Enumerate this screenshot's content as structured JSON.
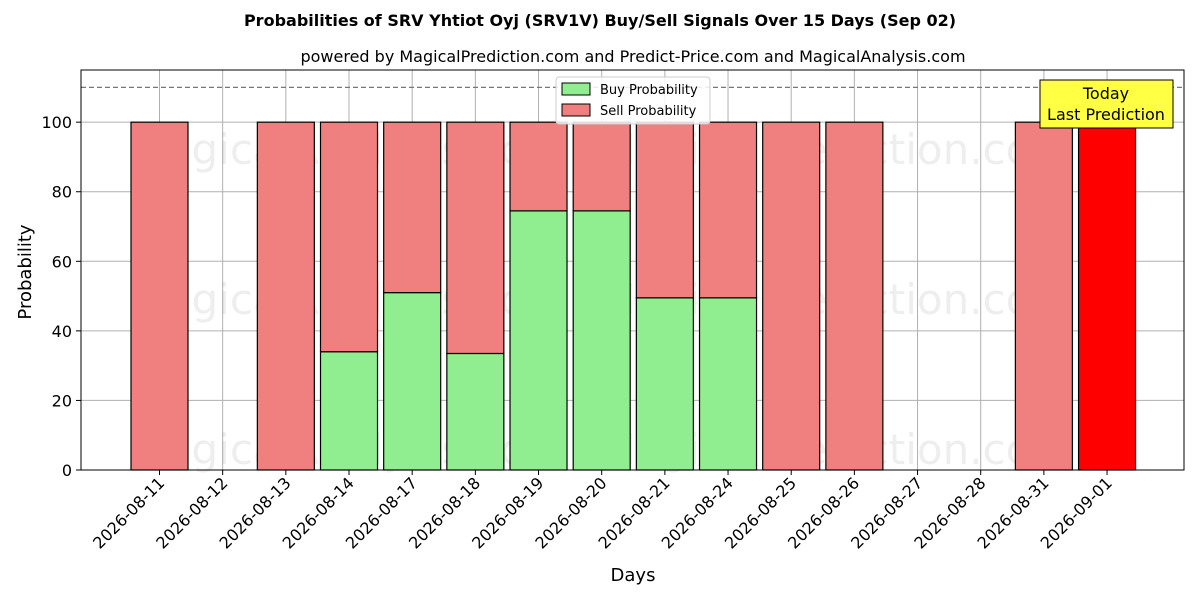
{
  "chart_data": {
    "type": "bar",
    "title": "Probabilities of SRV Yhtiot Oyj (SRV1V) Buy/Sell Signals Over 15 Days (Sep 02)",
    "subtitle": "powered by MagicalPrediction.com and Predict-Price.com and MagicalAnalysis.com",
    "xlabel": "Days",
    "ylabel": "Probability",
    "ylim": [
      0,
      115
    ],
    "yticks": [
      0,
      20,
      40,
      60,
      80,
      100
    ],
    "reference_line": 110,
    "grid": true,
    "legend_position": "upper-center",
    "categories": [
      "2026-08-11",
      "2026-08-12",
      "2026-08-13",
      "2026-08-14",
      "2026-08-17",
      "2026-08-18",
      "2026-08-19",
      "2026-08-20",
      "2026-08-21",
      "2026-08-24",
      "2026-08-25",
      "2026-08-26",
      "2026-08-27",
      "2026-08-28",
      "2026-08-31",
      "2026-09-01"
    ],
    "series": [
      {
        "name": "Buy Probability",
        "color": "#90ee90",
        "values": [
          0,
          null,
          0,
          34,
          51,
          33.5,
          74.5,
          74.5,
          49.5,
          49.5,
          0,
          0,
          null,
          null,
          0,
          0
        ]
      },
      {
        "name": "Sell Probability",
        "color": "#f08080",
        "values": [
          100,
          null,
          100,
          66,
          49,
          66.5,
          25.5,
          25.5,
          50.5,
          50.5,
          100,
          100,
          null,
          null,
          100,
          100
        ]
      }
    ],
    "highlight": {
      "category": "2026-09-01",
      "color": "#ff0000"
    },
    "annotation": {
      "lines": [
        "Today",
        "Last Prediction"
      ],
      "background": "#ffff44"
    },
    "watermarks": [
      "MagicalAnalysis.com",
      "MagicalPrediction.com"
    ]
  }
}
